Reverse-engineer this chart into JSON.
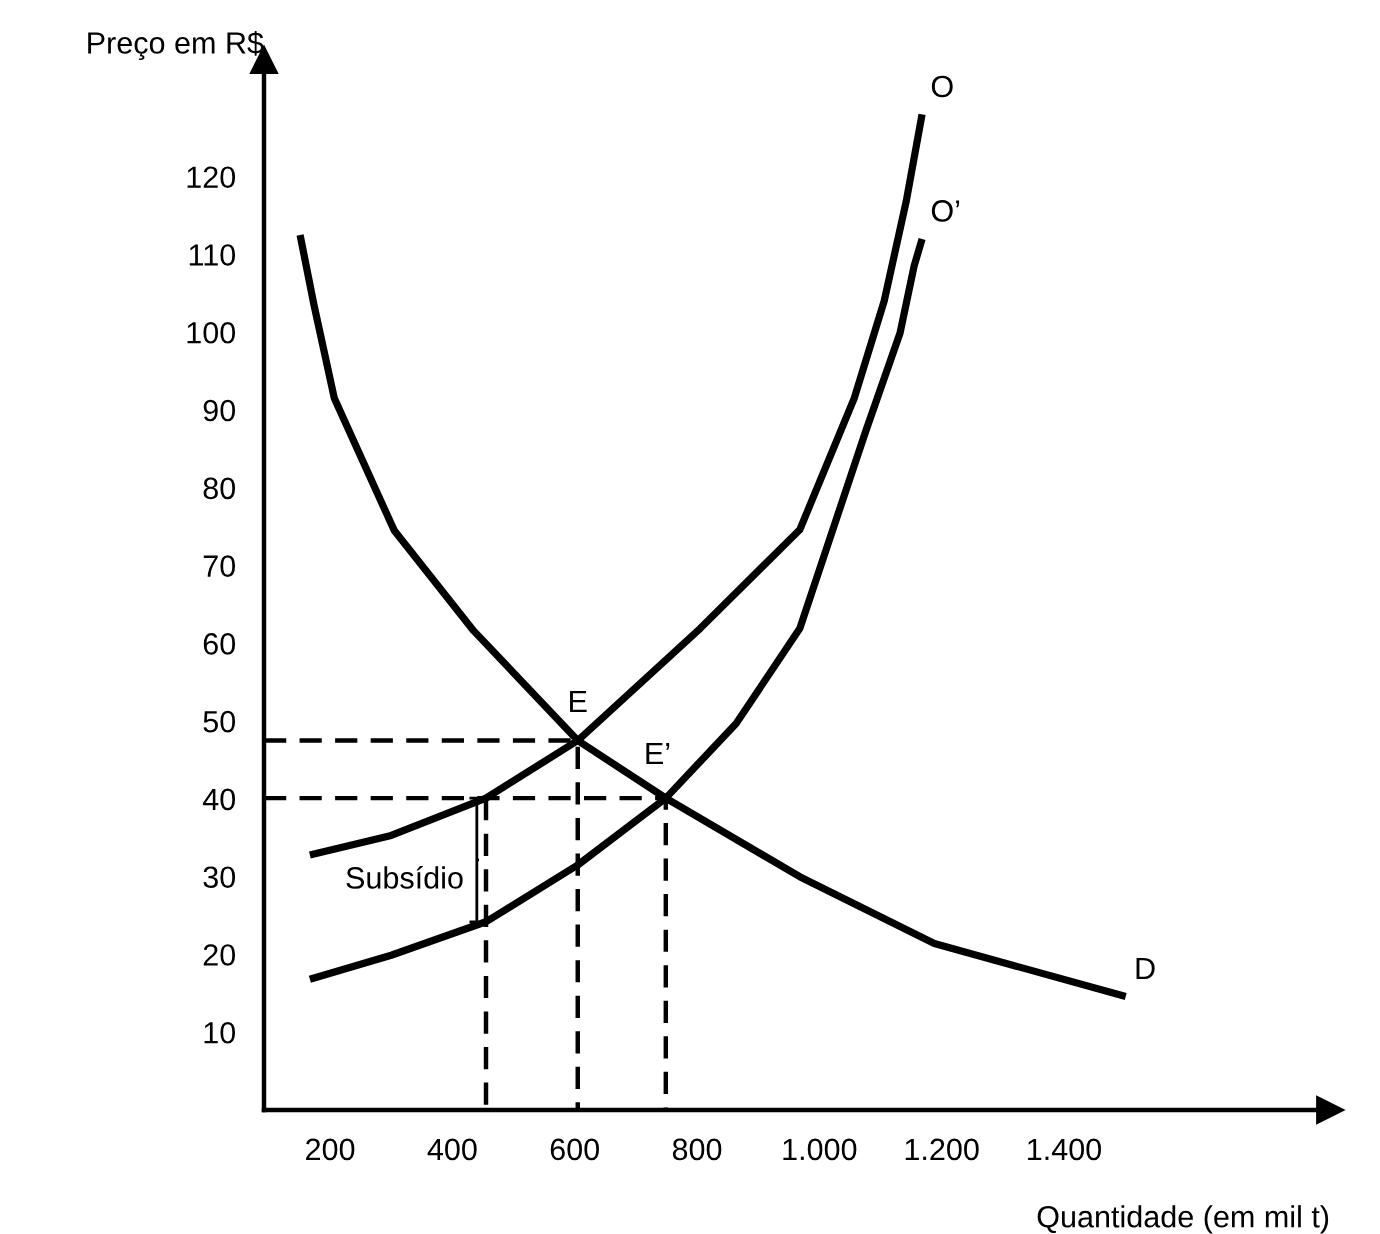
{
  "chart_data": {
    "type": "line",
    "xlabel": "Quantidade (em mil t)",
    "ylabel": "Preço em R$",
    "xlim": [
      92,
      1835
    ],
    "ylim": [
      0,
      135
    ],
    "xticks": [
      200,
      400,
      600,
      800,
      {
        "value": 1000,
        "label": "1.000"
      },
      {
        "value": 1200,
        "label": "1.200"
      },
      {
        "value": 1400,
        "label": "1.400"
      }
    ],
    "yticks": [
      10,
      20,
      30,
      40,
      50,
      60,
      70,
      80,
      90,
      100,
      110,
      120
    ],
    "marker": "none",
    "series": [
      {
        "name": "D",
        "color": "#000000",
        "line_style": "solid",
        "x": [
          151,
          174,
          207,
          305,
          435,
          605,
          749,
          968,
          1188,
          1501
        ],
        "values": [
          112.5,
          103.4,
          91.5,
          74.5,
          61.6,
          47.5,
          40.1,
          30,
          21.4,
          14.6
        ]
      },
      {
        "name": "O",
        "color": "#000000",
        "line_style": "solid",
        "x": [
          167,
          300,
          455,
          605,
          805,
          968,
          1057,
          1106,
          1142,
          1168
        ],
        "values": [
          32.8,
          35.3,
          40.1,
          47.5,
          61.9,
          74.6,
          91.5,
          104,
          116.8,
          128
        ]
      },
      {
        "name": "O’",
        "color": "#000000",
        "line_style": "solid",
        "x": [
          167,
          300,
          455,
          605,
          749,
          864,
          968,
          1076,
          1132,
          1155,
          1168
        ],
        "values": [
          16.8,
          19.9,
          24.2,
          31.5,
          40.1,
          49.7,
          61.9,
          87.3,
          99.9,
          108.5,
          112
        ]
      },
      {
        "color": "#000000",
        "line_style": "dashed",
        "x": [
          92,
          605,
          605
        ],
        "values": [
          47.5,
          47.5,
          0
        ]
      },
      {
        "color": "#000000",
        "line_style": "dashed",
        "x": [
          92,
          749,
          749
        ],
        "values": [
          40.1,
          40.1,
          0
        ]
      },
      {
        "color": "#000000",
        "line_style": "dashed",
        "x": [
          455,
          455
        ],
        "values": [
          40.1,
          0
        ]
      }
    ],
    "annotations": [
      {
        "text": "E",
        "x": 605,
        "y": 47.5
      },
      {
        "text": "E’",
        "x": 749,
        "y": 40.1
      },
      {
        "text": "Subsídio",
        "x": 455,
        "y": 32
      }
    ]
  }
}
